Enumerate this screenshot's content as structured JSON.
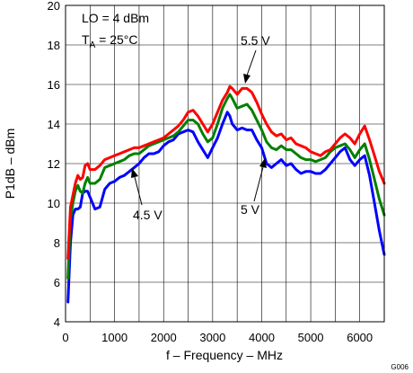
{
  "chart_data": {
    "type": "line",
    "xlabel": "f – Frequency – MHz",
    "ylabel": "P1dB – dBm",
    "xlim": [
      0,
      6500
    ],
    "ylim": [
      4,
      20
    ],
    "xticks": [
      0,
      1000,
      2000,
      3000,
      4000,
      5000,
      6000
    ],
    "yticks": [
      4,
      6,
      8,
      10,
      12,
      14,
      16,
      18,
      20
    ],
    "grid": true,
    "figure_id": "G006",
    "conditions": {
      "lo": "LO = 4 dBm",
      "ta_main": "T",
      "ta_sub": "A",
      "ta_rest": " = 25°C"
    },
    "series": [
      {
        "name": "5.5 V",
        "color": "#ff0000",
        "points": [
          [
            50,
            7.2
          ],
          [
            100,
            9.8
          ],
          [
            150,
            10.4
          ],
          [
            200,
            11.0
          ],
          [
            250,
            11.4
          ],
          [
            300,
            11.2
          ],
          [
            350,
            11.3
          ],
          [
            400,
            11.9
          ],
          [
            450,
            12.0
          ],
          [
            500,
            11.7
          ],
          [
            600,
            11.7
          ],
          [
            700,
            11.9
          ],
          [
            800,
            12.2
          ],
          [
            900,
            12.3
          ],
          [
            1000,
            12.4
          ],
          [
            1100,
            12.5
          ],
          [
            1200,
            12.6
          ],
          [
            1300,
            12.7
          ],
          [
            1400,
            12.8
          ],
          [
            1500,
            12.8
          ],
          [
            1600,
            12.9
          ],
          [
            1700,
            13.0
          ],
          [
            1800,
            13.1
          ],
          [
            1900,
            13.2
          ],
          [
            2000,
            13.3
          ],
          [
            2100,
            13.5
          ],
          [
            2200,
            13.7
          ],
          [
            2300,
            13.9
          ],
          [
            2400,
            14.2
          ],
          [
            2500,
            14.6
          ],
          [
            2600,
            14.7
          ],
          [
            2700,
            14.4
          ],
          [
            2800,
            14.0
          ],
          [
            2900,
            13.6
          ],
          [
            3000,
            14.0
          ],
          [
            3100,
            14.6
          ],
          [
            3200,
            15.2
          ],
          [
            3300,
            15.6
          ],
          [
            3350,
            15.9
          ],
          [
            3400,
            15.8
          ],
          [
            3500,
            15.5
          ],
          [
            3600,
            15.8
          ],
          [
            3700,
            15.8
          ],
          [
            3800,
            15.6
          ],
          [
            3900,
            15.1
          ],
          [
            4000,
            14.5
          ],
          [
            4100,
            14.0
          ],
          [
            4200,
            13.6
          ],
          [
            4300,
            13.4
          ],
          [
            4400,
            13.5
          ],
          [
            4500,
            13.2
          ],
          [
            4600,
            13.3
          ],
          [
            4700,
            13.0
          ],
          [
            4800,
            12.9
          ],
          [
            4900,
            12.8
          ],
          [
            5000,
            12.6
          ],
          [
            5100,
            12.5
          ],
          [
            5200,
            12.4
          ],
          [
            5300,
            12.6
          ],
          [
            5400,
            12.7
          ],
          [
            5500,
            13.0
          ],
          [
            5600,
            13.3
          ],
          [
            5700,
            13.5
          ],
          [
            5800,
            13.3
          ],
          [
            5900,
            13.0
          ],
          [
            6000,
            13.5
          ],
          [
            6100,
            13.9
          ],
          [
            6200,
            13.2
          ],
          [
            6300,
            12.4
          ],
          [
            6400,
            11.6
          ],
          [
            6500,
            11.0
          ]
        ]
      },
      {
        "name": "5 V",
        "color": "#008000",
        "points": [
          [
            50,
            6.2
          ],
          [
            100,
            9.2
          ],
          [
            150,
            10.0
          ],
          [
            200,
            10.6
          ],
          [
            250,
            10.9
          ],
          [
            300,
            10.6
          ],
          [
            350,
            10.5
          ],
          [
            400,
            11.0
          ],
          [
            450,
            11.3
          ],
          [
            500,
            11.0
          ],
          [
            600,
            11.0
          ],
          [
            700,
            11.2
          ],
          [
            800,
            11.8
          ],
          [
            900,
            11.9
          ],
          [
            1000,
            12.0
          ],
          [
            1100,
            12.1
          ],
          [
            1200,
            12.2
          ],
          [
            1300,
            12.4
          ],
          [
            1400,
            12.5
          ],
          [
            1500,
            12.5
          ],
          [
            1600,
            12.7
          ],
          [
            1700,
            12.9
          ],
          [
            1800,
            13.0
          ],
          [
            1900,
            13.1
          ],
          [
            2000,
            13.2
          ],
          [
            2100,
            13.3
          ],
          [
            2200,
            13.4
          ],
          [
            2300,
            13.6
          ],
          [
            2400,
            13.9
          ],
          [
            2500,
            14.2
          ],
          [
            2600,
            14.2
          ],
          [
            2700,
            14.0
          ],
          [
            2800,
            13.5
          ],
          [
            2900,
            13.1
          ],
          [
            3000,
            13.3
          ],
          [
            3100,
            14.0
          ],
          [
            3200,
            14.8
          ],
          [
            3300,
            15.3
          ],
          [
            3350,
            15.5
          ],
          [
            3400,
            15.3
          ],
          [
            3500,
            14.8
          ],
          [
            3600,
            14.9
          ],
          [
            3700,
            15.0
          ],
          [
            3800,
            14.7
          ],
          [
            3900,
            14.2
          ],
          [
            4000,
            13.7
          ],
          [
            4100,
            13.1
          ],
          [
            4200,
            12.8
          ],
          [
            4300,
            12.7
          ],
          [
            4400,
            12.9
          ],
          [
            4500,
            12.7
          ],
          [
            4600,
            12.7
          ],
          [
            4700,
            12.5
          ],
          [
            4800,
            12.3
          ],
          [
            4900,
            12.2
          ],
          [
            5000,
            12.2
          ],
          [
            5100,
            12.1
          ],
          [
            5200,
            12.2
          ],
          [
            5300,
            12.3
          ],
          [
            5400,
            12.6
          ],
          [
            5500,
            12.8
          ],
          [
            5600,
            12.9
          ],
          [
            5700,
            13.0
          ],
          [
            5800,
            12.7
          ],
          [
            5900,
            12.3
          ],
          [
            6000,
            12.7
          ],
          [
            6100,
            13.0
          ],
          [
            6200,
            12.2
          ],
          [
            6300,
            11.2
          ],
          [
            6400,
            10.2
          ],
          [
            6500,
            9.4
          ]
        ]
      },
      {
        "name": "4.5 V",
        "color": "#0000ff",
        "points": [
          [
            50,
            5.0
          ],
          [
            100,
            8.0
          ],
          [
            150,
            9.4
          ],
          [
            200,
            9.7
          ],
          [
            250,
            9.7
          ],
          [
            300,
            9.8
          ],
          [
            350,
            10.5
          ],
          [
            400,
            10.6
          ],
          [
            450,
            10.6
          ],
          [
            500,
            10.3
          ],
          [
            600,
            9.7
          ],
          [
            700,
            9.8
          ],
          [
            800,
            10.7
          ],
          [
            900,
            11.0
          ],
          [
            1000,
            11.1
          ],
          [
            1100,
            11.3
          ],
          [
            1200,
            11.4
          ],
          [
            1300,
            11.6
          ],
          [
            1400,
            11.8
          ],
          [
            1500,
            12.0
          ],
          [
            1600,
            12.3
          ],
          [
            1700,
            12.5
          ],
          [
            1800,
            12.5
          ],
          [
            1900,
            12.6
          ],
          [
            2000,
            12.9
          ],
          [
            2100,
            13.1
          ],
          [
            2200,
            13.2
          ],
          [
            2300,
            13.5
          ],
          [
            2400,
            13.6
          ],
          [
            2500,
            13.7
          ],
          [
            2600,
            13.6
          ],
          [
            2700,
            13.1
          ],
          [
            2800,
            12.7
          ],
          [
            2900,
            12.3
          ],
          [
            3000,
            12.8
          ],
          [
            3100,
            13.3
          ],
          [
            3200,
            14.0
          ],
          [
            3300,
            14.6
          ],
          [
            3350,
            14.4
          ],
          [
            3400,
            14.0
          ],
          [
            3500,
            13.7
          ],
          [
            3600,
            13.8
          ],
          [
            3700,
            13.7
          ],
          [
            3800,
            13.7
          ],
          [
            3900,
            13.2
          ],
          [
            4000,
            12.8
          ],
          [
            4100,
            12.0
          ],
          [
            4200,
            11.8
          ],
          [
            4300,
            12.0
          ],
          [
            4400,
            12.2
          ],
          [
            4500,
            11.9
          ],
          [
            4600,
            12.0
          ],
          [
            4700,
            11.7
          ],
          [
            4800,
            11.5
          ],
          [
            4900,
            11.6
          ],
          [
            5000,
            11.6
          ],
          [
            5100,
            11.5
          ],
          [
            5200,
            11.5
          ],
          [
            5300,
            11.7
          ],
          [
            5400,
            12.0
          ],
          [
            5500,
            12.3
          ],
          [
            5600,
            12.6
          ],
          [
            5700,
            12.8
          ],
          [
            5800,
            12.2
          ],
          [
            5900,
            11.9
          ],
          [
            6000,
            12.2
          ],
          [
            6100,
            12.4
          ],
          [
            6200,
            11.4
          ],
          [
            6300,
            10.0
          ],
          [
            6400,
            8.6
          ],
          [
            6500,
            7.4
          ]
        ]
      }
    ],
    "annotations": [
      {
        "text": "5.5 V",
        "target": [
          3700,
          15.9
        ]
      },
      {
        "text": "5 V",
        "target": [
          4000,
          13.1
        ]
      },
      {
        "text": "4.5 V",
        "target": [
          1300,
          11.6
        ]
      }
    ]
  }
}
